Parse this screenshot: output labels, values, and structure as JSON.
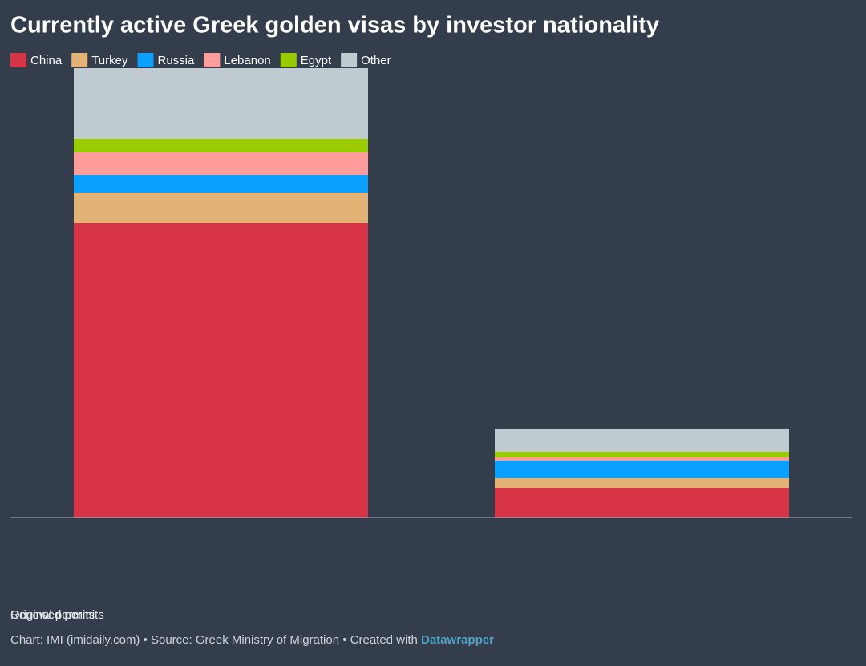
{
  "chart_data": {
    "type": "stacked_bar",
    "title": "Currently active Greek golden visas by investor nationality",
    "categories": [
      "Original permits",
      "Renewed permits"
    ],
    "series": [
      {
        "name": "China",
        "color": "#d73545",
        "values": [
          3670,
          370
        ]
      },
      {
        "name": "Turkey",
        "color": "#e2b375",
        "values": [
          380,
          120
        ]
      },
      {
        "name": "Russia",
        "color": "#0aa0ff",
        "values": [
          220,
          220
        ]
      },
      {
        "name": "Lebanon",
        "color": "#ff9c9c",
        "values": [
          280,
          40
        ]
      },
      {
        "name": "Egypt",
        "color": "#99cc00",
        "values": [
          170,
          70
        ]
      },
      {
        "name": "Other",
        "color": "#bfcbd0",
        "values": [
          880,
          280
        ]
      }
    ],
    "ylim": [
      0,
      5600
    ],
    "footer": "Chart: IMI (imidaily.com) • Source: Greek Ministry of Migration • Created with",
    "credit": "Datawrapper"
  }
}
